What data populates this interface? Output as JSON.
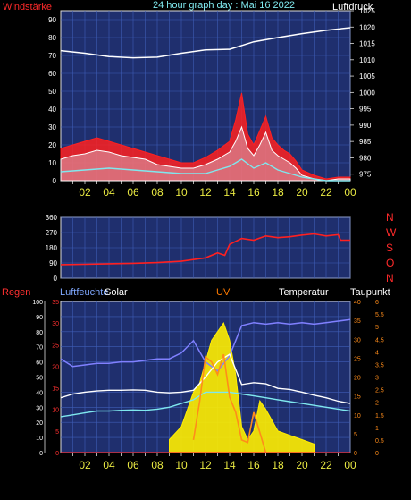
{
  "header": {
    "left_title": "Windstärke",
    "center_title": "24 hour graph day : Mai 16 2022",
    "right_title": "Luftdruck"
  },
  "colors": {
    "plot_bg": "#1f2f6e",
    "grid": "#3f5db6",
    "frame": "#dcdcdc",
    "tick_yellow": "#e9e942",
    "wind_red": "#ff2020",
    "gust_white": "#ffffff",
    "wind_cyan": "#7fe8ee",
    "pressure_white": "#ffffff",
    "solar_yellow": "#ffee00",
    "uv_orange": "#ff8c1a",
    "humidity_violet": "#8080ff",
    "temp_white": "#ffffff",
    "dew_cyan": "#7fe8ee",
    "rain_red": "#ff3030",
    "humidity_label": "#7fa8ff",
    "uv_label": "#ff7a00"
  },
  "chart_data": [
    {
      "type": "line",
      "name": "wind-pressure",
      "x_ticks": [
        "02",
        "04",
        "06",
        "08",
        "10",
        "12",
        "14",
        "16",
        "18",
        "20",
        "22",
        "00"
      ],
      "left_axis": {
        "label": "Windstärke",
        "range": [
          0,
          95
        ],
        "ticks": [
          0,
          10,
          20,
          30,
          40,
          50,
          60,
          70,
          80,
          90
        ]
      },
      "right_axis": {
        "label": "Luftdruck",
        "range": [
          973,
          1025
        ],
        "ticks": [
          975,
          980,
          985,
          990,
          995,
          1000,
          1005,
          1010,
          1015,
          1020,
          1025
        ]
      },
      "series": [
        {
          "role": "wind",
          "x": [
            0,
            1,
            2,
            3,
            4,
            5,
            6,
            7,
            8,
            9,
            10,
            11,
            12,
            13,
            14,
            14.5,
            15,
            15.5,
            16,
            16.5,
            17,
            17.5,
            18,
            18.5,
            19,
            19.5,
            20,
            21,
            22,
            23,
            24
          ],
          "y": [
            12,
            14,
            15,
            17,
            16,
            14,
            13,
            12,
            9,
            8,
            7,
            7,
            9,
            12,
            16,
            22,
            30,
            18,
            14,
            20,
            27,
            17,
            14,
            12,
            10,
            7,
            3,
            1,
            0,
            1,
            1
          ]
        },
        {
          "role": "gust",
          "x": [
            0,
            1,
            2,
            3,
            4,
            5,
            6,
            7,
            8,
            9,
            10,
            11,
            12,
            13,
            14,
            14.5,
            15,
            15.5,
            16,
            16.5,
            17,
            17.5,
            18,
            18.5,
            19,
            19.5,
            20,
            21,
            22,
            23,
            24
          ],
          "y": [
            18,
            20,
            22,
            24,
            22,
            20,
            18,
            16,
            14,
            12,
            10,
            10,
            13,
            17,
            22,
            34,
            49,
            26,
            20,
            28,
            36,
            24,
            20,
            17,
            15,
            11,
            6,
            3,
            1,
            2,
            2
          ]
        },
        {
          "role": "wind_avg",
          "x": [
            0,
            2,
            4,
            6,
            8,
            10,
            12,
            13,
            14,
            15,
            16,
            17,
            18,
            19,
            20,
            22,
            24
          ],
          "y": [
            5,
            6,
            7,
            6,
            5,
            4,
            4,
            6,
            8,
            12,
            7,
            10,
            6,
            4,
            2,
            0,
            0
          ]
        },
        {
          "role": "pressure",
          "x": [
            0,
            2,
            4,
            6,
            8,
            10,
            12,
            14,
            16,
            18,
            20,
            22,
            24
          ],
          "y": [
            1012.8,
            1012,
            1011,
            1010.6,
            1010.8,
            1012,
            1013,
            1013.2,
            1015.5,
            1016.8,
            1018,
            1019,
            1019.8
          ]
        }
      ]
    },
    {
      "type": "line",
      "name": "wind-direction",
      "right_labels": [
        "N",
        "W",
        "S",
        "O",
        "N"
      ],
      "left_axis": {
        "range": [
          0,
          360
        ],
        "ticks": [
          0,
          90,
          180,
          270,
          360
        ]
      },
      "series": [
        {
          "role": "direction",
          "x": [
            0,
            2,
            4,
            6,
            8,
            10,
            12,
            13,
            13.6,
            14,
            15,
            16,
            17,
            18,
            19,
            20,
            21,
            22,
            23,
            23.2,
            24
          ],
          "y": [
            80,
            82,
            85,
            88,
            92,
            100,
            120,
            150,
            135,
            200,
            235,
            225,
            250,
            240,
            245,
            255,
            262,
            250,
            258,
            225,
            225
          ]
        }
      ]
    },
    {
      "type": "line",
      "name": "weather",
      "labels": [
        "Regen",
        "Luftfeuchte",
        "Solar",
        "UV",
        "Temperatur",
        "Taupunkt"
      ],
      "left_axis": {
        "label": "Regen",
        "range": [
          0,
          100
        ],
        "ticks": [
          0,
          10,
          20,
          30,
          40,
          50,
          60,
          70,
          80,
          90,
          100
        ]
      },
      "left_axis2": {
        "label": "Luftfeuchte",
        "range": [
          0,
          35
        ],
        "ticks": [
          0,
          5,
          10,
          15,
          20,
          25,
          30,
          35
        ]
      },
      "right_axis": {
        "label": "Temperatur",
        "range": [
          0,
          40
        ],
        "ticks": [
          0,
          5,
          10,
          15,
          20,
          25,
          30,
          35,
          40
        ]
      },
      "right_axis2": {
        "label": "Taupunkt",
        "range": [
          0,
          6
        ],
        "ticks": [
          0,
          0.5,
          1,
          1.5,
          2,
          2.5,
          3,
          3.5,
          4,
          4.5,
          5,
          5.5,
          6
        ]
      },
      "series": [
        {
          "role": "humidity",
          "x": [
            0,
            1,
            2,
            3,
            4,
            5,
            6,
            7,
            8,
            9,
            10,
            11,
            12,
            13,
            14,
            15,
            16,
            17,
            18,
            19,
            20,
            21,
            22,
            23,
            24
          ],
          "y": [
            62,
            57,
            58,
            59,
            59,
            60,
            60,
            61,
            62,
            62,
            66,
            74,
            60,
            54,
            64,
            84,
            86,
            85,
            86,
            85,
            86,
            85,
            86,
            87,
            88
          ]
        },
        {
          "role": "temperature",
          "x": [
            0,
            1,
            2,
            3,
            4,
            5,
            6,
            7,
            8,
            9,
            10,
            11,
            12,
            13,
            14,
            15,
            16,
            17,
            18,
            19,
            20,
            21,
            22,
            23,
            24
          ],
          "y": [
            14.5,
            15.5,
            16,
            16.3,
            16.5,
            16.5,
            16.6,
            16.5,
            16,
            15.8,
            16,
            16.5,
            20,
            24,
            26,
            18,
            18.5,
            18.2,
            17,
            16.7,
            16,
            15.2,
            14.5,
            13.6,
            13
          ]
        },
        {
          "role": "dewpoint",
          "x": [
            0,
            1,
            2,
            3,
            4,
            5,
            6,
            7,
            8,
            9,
            10,
            11,
            12,
            13,
            14,
            15,
            16,
            17,
            18,
            19,
            20,
            21,
            22,
            23,
            24
          ],
          "y": [
            9.5,
            10,
            10.5,
            11,
            11,
            11.2,
            11.3,
            11.2,
            11.5,
            12,
            13,
            14,
            16,
            16,
            16,
            15.5,
            15,
            14.5,
            14,
            13.5,
            13,
            12.5,
            12,
            11.5,
            11
          ]
        },
        {
          "role": "uv",
          "x": [
            11,
            11.5,
            12,
            12.5,
            13,
            13.5,
            14,
            14.5,
            15,
            15.5,
            16,
            16.5,
            17
          ],
          "y": [
            0.5,
            2,
            3.8,
            3.6,
            3.1,
            3.9,
            2.2,
            1.6,
            0.5,
            0.4,
            1.6,
            0.8,
            0
          ]
        },
        {
          "role": "solar",
          "x": [
            9,
            10,
            11,
            11.5,
            12,
            12.5,
            13,
            13.5,
            14,
            14.5,
            15,
            15.5,
            16,
            16.5,
            17,
            18,
            19,
            20,
            21
          ],
          "y": [
            3,
            6,
            14,
            16,
            21,
            26,
            28,
            30,
            26,
            18,
            6,
            3,
            5,
            12,
            10,
            5,
            4,
            3,
            2
          ]
        },
        {
          "role": "rain",
          "x": [
            0,
            24
          ],
          "y": [
            0,
            0
          ]
        }
      ]
    }
  ]
}
